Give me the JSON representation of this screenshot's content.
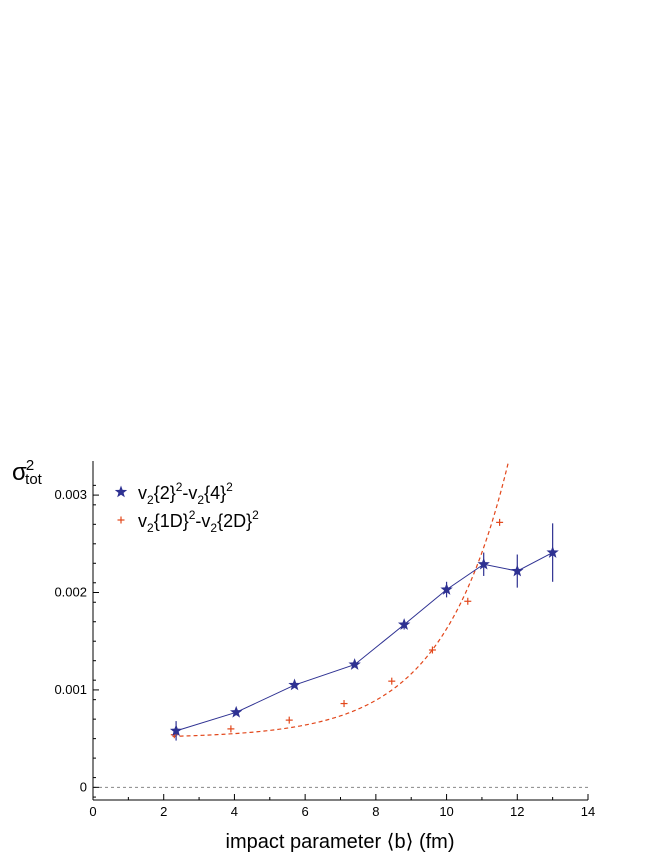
{
  "chart_data": {
    "type": "scatter",
    "xlabel": "impact parameter ⟨b⟩ (fm)",
    "ylabel": {
      "base": "σ",
      "sup": "2",
      "sub": "tot"
    },
    "xlim": [
      0,
      14
    ],
    "ylim": [
      -0.00013,
      0.00335
    ],
    "xticks": [
      0,
      2,
      4,
      6,
      8,
      10,
      12,
      14
    ],
    "xtick_labels": [
      "0",
      "2",
      "4",
      "6",
      "8",
      "10",
      "12",
      "14"
    ],
    "yticks": [
      0,
      0.001,
      0.002,
      0.003
    ],
    "ytick_labels": [
      "0",
      "0.001",
      "0.002",
      "0.003"
    ],
    "grid": false,
    "zero_line": true,
    "legend_position": "top-left",
    "series": [
      {
        "name": "v2{2}^2-v2{4}^2",
        "legend_parts": [
          "v",
          "2",
          "{2}",
          "2",
          "-v",
          "2",
          "{4}",
          "2"
        ],
        "marker": "star",
        "line": "solid",
        "color": "#2e3192",
        "x": [
          2.35,
          4.05,
          5.7,
          7.4,
          8.8,
          10.0,
          11.05,
          12.0,
          13.0
        ],
        "y": [
          0.00058,
          0.00077,
          0.00105,
          0.00126,
          0.00167,
          0.00203,
          0.00229,
          0.00222,
          0.00241
        ],
        "err": [
          0.0001,
          3e-05,
          2e-05,
          3e-05,
          5e-05,
          8e-05,
          0.00012,
          0.00017,
          0.0003
        ]
      },
      {
        "name": "v2{1D}^2-v2{2D}^2",
        "legend_parts": [
          "v",
          "2",
          "{1D}",
          "2",
          "-v",
          "2",
          "{2D}",
          "2"
        ],
        "marker": "plus",
        "line": "dashed-fit",
        "color": "#e2471b",
        "x": [
          2.3,
          3.9,
          5.55,
          7.1,
          8.45,
          9.6,
          10.6,
          11.5
        ],
        "y": [
          0.00054,
          0.0006,
          0.00069,
          0.00086,
          0.00109,
          0.00141,
          0.00191,
          0.00272
        ],
        "fit": {
          "form": "y = a + b*exp(c*x)",
          "a": 0.000505,
          "b": 5.6e-06,
          "c": 0.53
        }
      }
    ]
  }
}
